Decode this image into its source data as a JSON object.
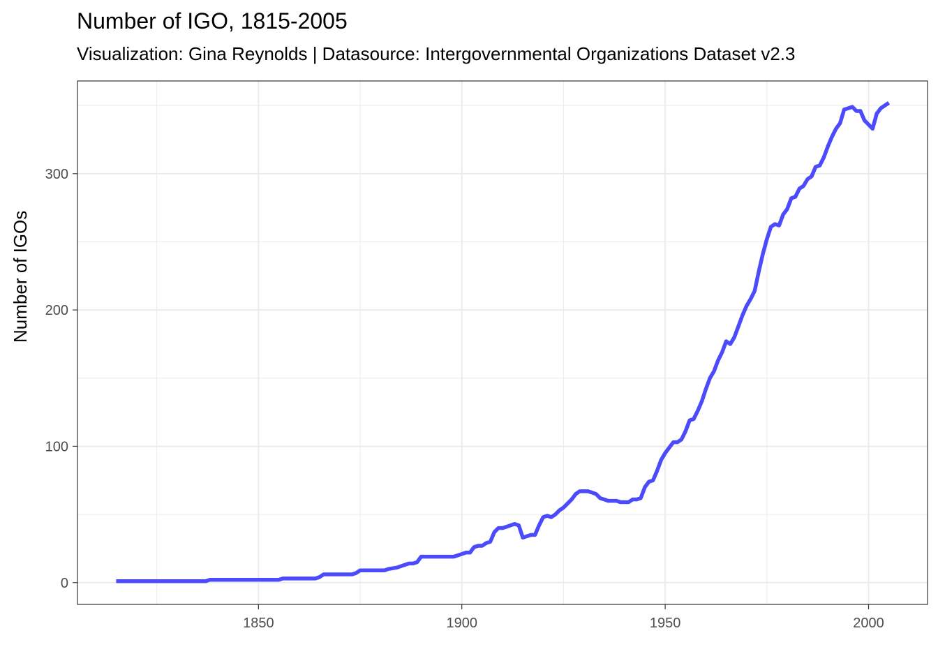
{
  "chart_data": {
    "type": "line",
    "title": "Number of IGO, 1815-2005",
    "subtitle": "Visualization: Gina Reynolds | Datasource: Intergovernmental Organizations Dataset v2.3",
    "xlabel": "",
    "ylabel": "Number of IGOs",
    "xlim": [
      1805.5,
      2014.5
    ],
    "ylim": [
      -16,
      368
    ],
    "x_ticks": [
      1850,
      1900,
      1950,
      2000
    ],
    "y_ticks": [
      0,
      100,
      200,
      300
    ],
    "grid": true,
    "line_color": "#4b4bfb",
    "series": [
      {
        "x": [
          1815,
          1837,
          1838,
          1855,
          1856,
          1864,
          1865,
          1866,
          1873,
          1874,
          1875,
          1881,
          1882,
          1884,
          1885,
          1887,
          1888,
          1889,
          1890,
          1898,
          1899,
          1901,
          1902,
          1903,
          1904,
          1905,
          1906,
          1907,
          1908,
          1909,
          1910,
          1911,
          1912,
          1913,
          1914,
          1915,
          1916,
          1917,
          1918,
          1919,
          1920,
          1921,
          1922,
          1923,
          1924,
          1925,
          1926,
          1927,
          1928,
          1929,
          1930,
          1931,
          1932,
          1933,
          1934,
          1935,
          1936,
          1937,
          1938,
          1939,
          1940,
          1941,
          1942,
          1943,
          1944,
          1945,
          1946,
          1947,
          1948,
          1949,
          1950,
          1951,
          1952,
          1953,
          1954,
          1955,
          1956,
          1957,
          1958,
          1959,
          1960,
          1961,
          1962,
          1963,
          1964,
          1965,
          1966,
          1967,
          1968,
          1969,
          1970,
          1971,
          1972,
          1973,
          1974,
          1975,
          1976,
          1977,
          1978,
          1979,
          1980,
          1981,
          1982,
          1983,
          1984,
          1985,
          1986,
          1987,
          1988,
          1989,
          1990,
          1991,
          1992,
          1993,
          1994,
          1995,
          1996,
          1997,
          1998,
          1999,
          2000,
          2001,
          2002,
          2003,
          2004,
          2005
        ],
        "y": [
          1,
          1,
          2,
          2,
          3,
          3,
          4,
          6,
          6,
          7,
          9,
          9,
          10,
          11,
          12,
          14,
          14,
          15,
          19,
          19,
          20,
          22,
          22,
          26,
          27,
          27,
          29,
          30,
          37,
          40,
          40,
          41,
          42,
          43,
          42,
          33,
          34,
          35,
          35,
          42,
          48,
          49,
          48,
          50,
          53,
          55,
          58,
          61,
          65,
          67,
          67,
          67,
          66,
          65,
          62,
          61,
          60,
          60,
          60,
          59,
          59,
          59,
          61,
          61,
          62,
          70,
          74,
          75,
          82,
          90,
          95,
          99,
          103,
          103,
          105,
          111,
          119,
          120,
          126,
          133,
          142,
          150,
          155,
          163,
          169,
          177,
          175,
          180,
          188,
          196,
          203,
          208,
          214,
          228,
          241,
          252,
          261,
          263,
          262,
          270,
          274,
          282,
          283,
          289,
          291,
          296,
          298,
          305,
          306,
          312,
          320,
          327,
          333,
          337,
          347,
          348,
          349,
          346,
          346,
          339,
          336,
          333,
          344,
          348,
          350,
          352
        ]
      }
    ]
  }
}
